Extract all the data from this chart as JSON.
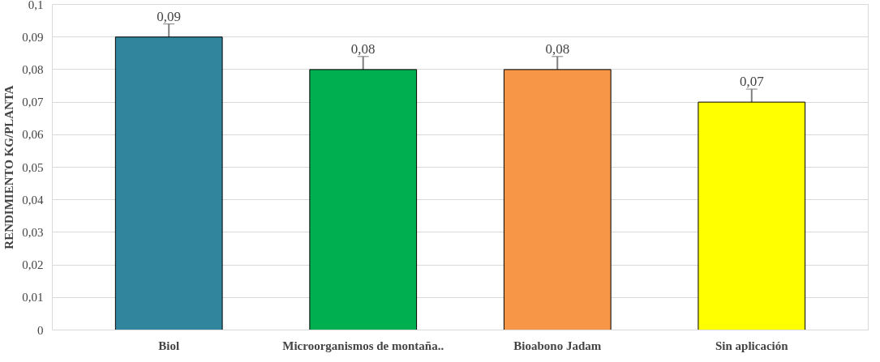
{
  "chart_data": {
    "type": "bar",
    "ylabel": "RENDIMIENTO KG/PLANTA",
    "categories": [
      "Biol",
      "Microorganismos de montaña..",
      "Bioabono Jadam",
      "Sin aplicación"
    ],
    "values": [
      0.09,
      0.08,
      0.08,
      0.07
    ],
    "colors": [
      "#31859c",
      "#00b050",
      "#f79646",
      "#ffff00"
    ],
    "errors": [
      0.004,
      0.004,
      0.004,
      0.004
    ],
    "value_labels": [
      "0,09",
      "0,08",
      "0,08",
      "0,07"
    ],
    "ylim": [
      0,
      0.1
    ],
    "yticks": [
      0,
      {
        "value": 0.01,
        "label": "0,01"
      },
      {
        "value": 0.02,
        "label": "0,02"
      },
      {
        "value": 0.03,
        "label": "0,03"
      },
      {
        "value": 0.04,
        "label": "0,04"
      },
      {
        "value": 0.05,
        "label": "0,05"
      },
      {
        "value": 0.06,
        "label": "0,06"
      },
      {
        "value": 0.07,
        "label": "0,07"
      },
      {
        "value": 0.08,
        "label": "0,08"
      },
      {
        "value": 0.09,
        "label": "0,09"
      },
      {
        "value": 0.1,
        "label": "0,1"
      }
    ],
    "grid": "y"
  }
}
